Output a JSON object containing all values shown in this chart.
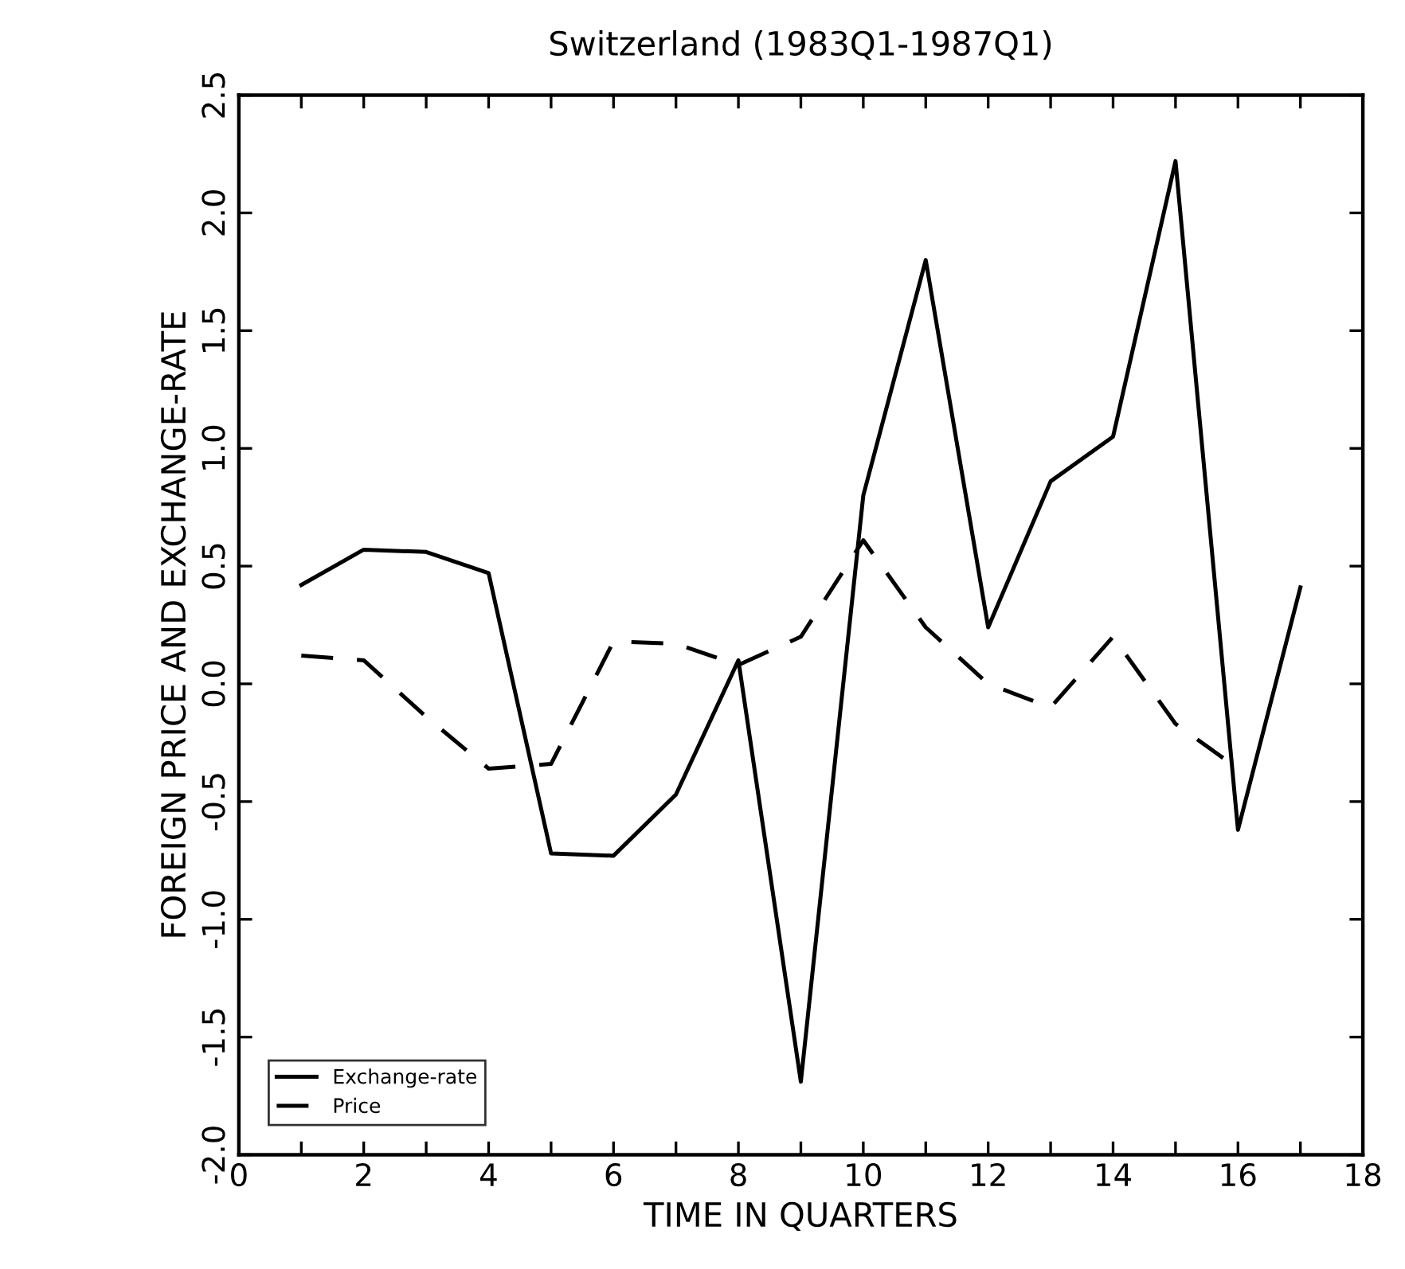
{
  "chart_data": {
    "type": "line",
    "title": "Switzerland (1983Q1-1987Q1)",
    "xlabel": "TIME IN QUARTERS",
    "ylabel": "FOREIGN PRICE AND EXCHANGE-RATE",
    "series": [
      {
        "name": "Exchange-rate",
        "color": "#000000",
        "line_style": "solid",
        "x": [
          1,
          2,
          3,
          4,
          5,
          6,
          7,
          8,
          9,
          10,
          11,
          12,
          13,
          14,
          15,
          16,
          17
        ],
        "values": [
          0.42,
          0.57,
          0.56,
          0.47,
          -0.72,
          -0.73,
          -0.47,
          0.1,
          -1.69,
          0.8,
          1.8,
          0.24,
          0.86,
          1.05,
          2.22,
          -0.62,
          0.41
        ]
      },
      {
        "name": "Price",
        "color": "#000000",
        "line_style": "dashed",
        "x": [
          1,
          2,
          3,
          4,
          5,
          6,
          7,
          8,
          9,
          10,
          11,
          12,
          13,
          14,
          15,
          16
        ],
        "values": [
          0.12,
          0.1,
          -0.14,
          -0.36,
          -0.34,
          0.18,
          0.17,
          0.08,
          0.2,
          0.61,
          0.24,
          0.0,
          -0.1,
          0.2,
          -0.17,
          -0.36
        ]
      }
    ],
    "xlim": [
      0,
      18
    ],
    "ylim": [
      -2.0,
      2.5
    ],
    "xticks": [
      0,
      {
        "value": 1,
        "label": null
      },
      2,
      {
        "value": 3,
        "label": null
      },
      4,
      {
        "value": 5,
        "label": null
      },
      6,
      {
        "value": 7,
        "label": null
      },
      8,
      {
        "value": 9,
        "label": null
      },
      10,
      {
        "value": 11,
        "label": null
      },
      12,
      {
        "value": 13,
        "label": null
      },
      14,
      {
        "value": 15,
        "label": null
      },
      16,
      {
        "value": 17,
        "label": null
      },
      18
    ],
    "yticks": [
      {
        "value": -2.0,
        "label": "-2.0"
      },
      {
        "value": -1.5,
        "label": "-1.5"
      },
      {
        "value": -1.0,
        "label": "-1.0"
      },
      {
        "value": -0.5,
        "label": "-0.5"
      },
      {
        "value": 0.0,
        "label": "0.0"
      },
      0.5,
      {
        "value": 1.0,
        "label": "1.0"
      },
      1.5,
      {
        "value": 2.0,
        "label": "2.0"
      },
      2.5
    ],
    "grid": false,
    "legend": "bottom left",
    "marker": "none"
  }
}
